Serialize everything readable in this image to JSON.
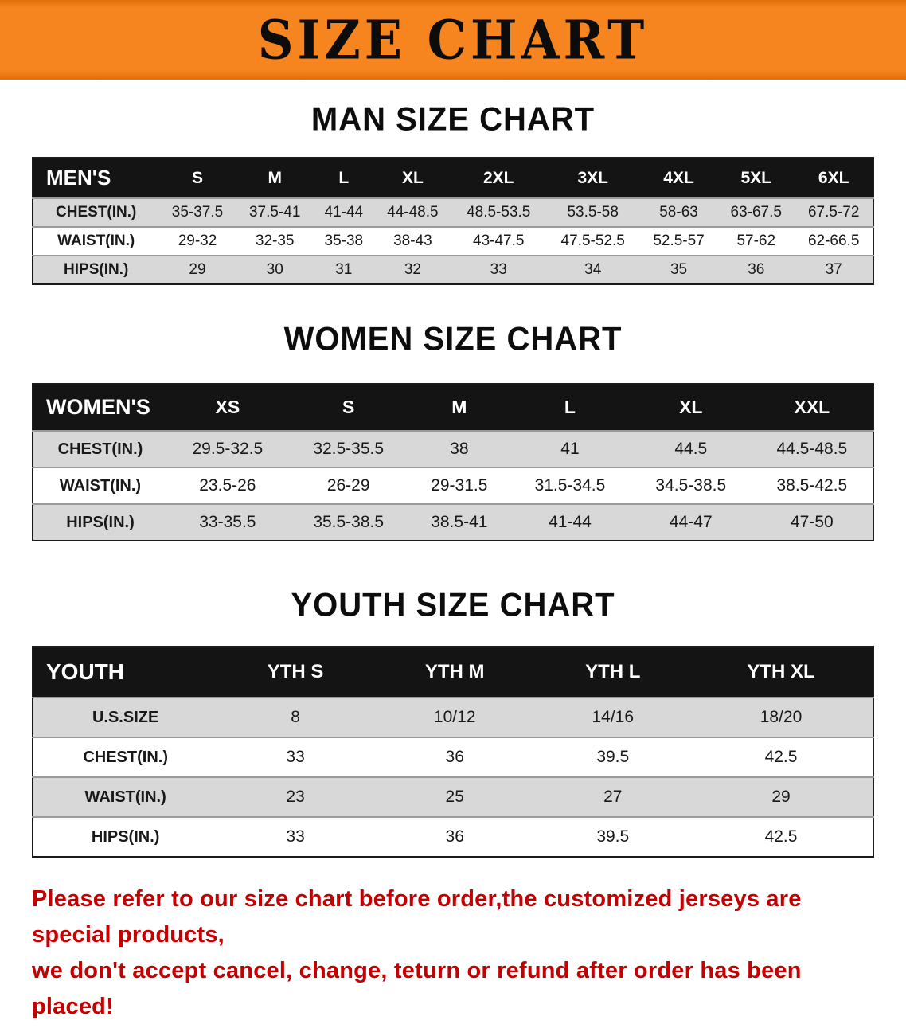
{
  "banner": {
    "title": "SIZE CHART"
  },
  "colors": {
    "banner_orange": "#f6851f",
    "banner_orange_dark": "#e2700a",
    "header_black": "#141414",
    "row_shade": "#d8d8d8",
    "note_red": "#c40000"
  },
  "men": {
    "heading": "MAN SIZE CHART",
    "header": [
      "MEN'S",
      "S",
      "M",
      "L",
      "XL",
      "2XL",
      "3XL",
      "4XL",
      "5XL",
      "6XL"
    ],
    "rows": [
      {
        "label": "CHEST(IN.)",
        "values": [
          "35-37.5",
          "37.5-41",
          "41-44",
          "44-48.5",
          "48.5-53.5",
          "53.5-58",
          "58-63",
          "63-67.5",
          "67.5-72"
        ]
      },
      {
        "label": "WAIST(IN.)",
        "values": [
          "29-32",
          "32-35",
          "35-38",
          "38-43",
          "43-47.5",
          "47.5-52.5",
          "52.5-57",
          "57-62",
          "62-66.5"
        ]
      },
      {
        "label": "HIPS(IN.)",
        "values": [
          "29",
          "30",
          "31",
          "32",
          "33",
          "34",
          "35",
          "36",
          "37"
        ]
      }
    ]
  },
  "women": {
    "heading": "WOMEN SIZE CHART",
    "header": [
      "WOMEN'S",
      "XS",
      "S",
      "M",
      "L",
      "XL",
      "XXL"
    ],
    "rows": [
      {
        "label": "CHEST(IN.)",
        "values": [
          "29.5-32.5",
          "32.5-35.5",
          "38",
          "41",
          "44.5",
          "44.5-48.5"
        ]
      },
      {
        "label": "WAIST(IN.)",
        "values": [
          "23.5-26",
          "26-29",
          "29-31.5",
          "31.5-34.5",
          "34.5-38.5",
          "38.5-42.5"
        ]
      },
      {
        "label": "HIPS(IN.)",
        "values": [
          "33-35.5",
          "35.5-38.5",
          "38.5-41",
          "41-44",
          "44-47",
          "47-50"
        ]
      }
    ]
  },
  "youth": {
    "heading": "YOUTH SIZE CHART",
    "header": [
      "YOUTH",
      "YTH S",
      "YTH M",
      "YTH L",
      "YTH XL"
    ],
    "rows": [
      {
        "label": "U.S.SIZE",
        "values": [
          "8",
          "10/12",
          "14/16",
          "18/20"
        ]
      },
      {
        "label": "CHEST(IN.)",
        "values": [
          "33",
          "36",
          "39.5",
          "42.5"
        ]
      },
      {
        "label": "WAIST(IN.)",
        "values": [
          "23",
          "25",
          "27",
          "29"
        ]
      },
      {
        "label": "HIPS(IN.)",
        "values": [
          "33",
          "36",
          "39.5",
          "42.5"
        ]
      }
    ]
  },
  "note": {
    "lines": [
      "Please refer to our size chart before order,the customized jerseys are special products,",
      "we don't accept cancel, change, teturn or refund after order has been placed!"
    ]
  }
}
